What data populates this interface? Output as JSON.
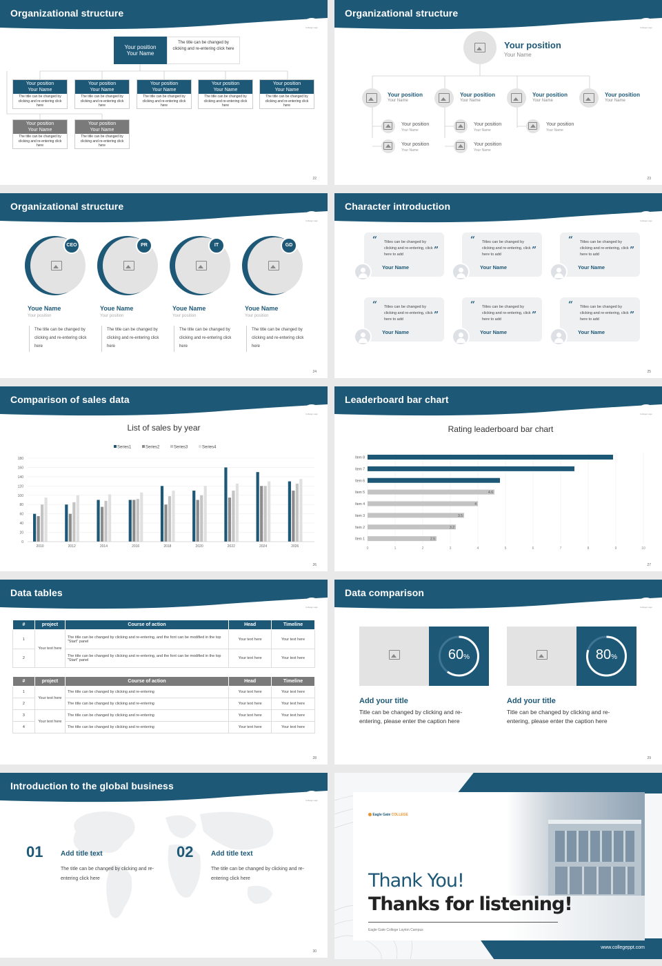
{
  "colors": {
    "navy": "#1d5877",
    "gray": "#7a7a7a",
    "light": "#e4e3e4"
  },
  "logo_text": "College Logo",
  "s22": {
    "title": "Organizational structure",
    "page": "22",
    "top": {
      "position": "Your position",
      "name": "Your Name",
      "desc": "The title can be changed by clicking and re-entering click here"
    },
    "boxes": [
      {
        "position": "Your position",
        "name": "Your Name",
        "text": "The title can be changed by clicking and re-entering click here"
      },
      {
        "position": "Your position",
        "name": "Your Name",
        "text": "The title can be changed by clicking and re-entering click here"
      },
      {
        "position": "Your position",
        "name": "Your Name",
        "text": "The title can be changed by clicking and re-entering click here"
      },
      {
        "position": "Your position",
        "name": "Your Name",
        "text": "The title can be changed by clicking and re-entering click here"
      },
      {
        "position": "Your position",
        "name": "Your Name",
        "text": "The title can be changed by clicking and re-entering click here"
      },
      {
        "position": "Your position",
        "name": "Your Name",
        "text": "The title can be changed by clicking and re-entering click here"
      },
      {
        "position": "Your position",
        "name": "Your Name",
        "text": "The title can be changed by clicking and re-entering click here"
      }
    ]
  },
  "s23": {
    "title": "Organizational structure",
    "page": "23",
    "top": {
      "position": "Your position",
      "name": "Your Name"
    },
    "level1": [
      {
        "position": "Your position",
        "name": "Your Name"
      },
      {
        "position": "Your position",
        "name": "Your Name"
      },
      {
        "position": "Your position",
        "name": "Your Name"
      },
      {
        "position": "Your position",
        "name": "Your Name"
      }
    ],
    "level2": [
      {
        "position": "Your position",
        "name": "Your Name"
      },
      {
        "position": "Your position",
        "name": "Your Name"
      },
      {
        "position": "Your position",
        "name": "Your Name"
      },
      {
        "position": "Your position",
        "name": "Your Name"
      },
      {
        "position": "Your position",
        "name": "Your Name"
      }
    ]
  },
  "s24": {
    "title": "Organizational structure",
    "page": "24",
    "people": [
      {
        "badge": "CEO",
        "name": "Youe Name",
        "position": "Your position",
        "text": "The title can be changed by clicking and re-entering click here"
      },
      {
        "badge": "PR",
        "name": "Youe Name",
        "position": "Your position",
        "text": "The title can be changed by clicking and re-entering click here"
      },
      {
        "badge": "IT",
        "name": "Youe Name",
        "position": "Your position",
        "text": "The title can be changed by clicking and re-entering click here"
      },
      {
        "badge": "GD",
        "name": "Youe Name",
        "position": "Your position",
        "text": "The title can be changed by clicking and re-entering click here"
      }
    ]
  },
  "s25": {
    "title": "Character introduction",
    "page": "25",
    "quote_open": "“",
    "quote_close": "”",
    "cards": [
      {
        "text": "Titles can be changed by clicking and re-entering, click here to add",
        "name": "Your Name"
      },
      {
        "text": "Titles can be changed by clicking and re-entering, click here to add",
        "name": "Your Name"
      },
      {
        "text": "Titles can be changed by clicking and re-entering, click here to add",
        "name": "Your Name"
      },
      {
        "text": "Titles can be changed by clicking and re-entering, click here to add",
        "name": "Your Name"
      },
      {
        "text": "Titles can be changed by clicking and re-entering, click here to add",
        "name": "Your Name"
      },
      {
        "text": "Titles can be changed by clicking and re-entering, click here to add",
        "name": "Your Name"
      }
    ]
  },
  "s26": {
    "title": "Comparison of sales data",
    "page": "26"
  },
  "s27": {
    "title": "Leaderboard bar chart",
    "page": "27"
  },
  "chart_data": [
    {
      "type": "bar",
      "title": "List of sales by year",
      "categories": [
        "2010",
        "2012",
        "2014",
        "2016",
        "2018",
        "2020",
        "2022",
        "2024",
        "2026"
      ],
      "series": [
        {
          "name": "Series1",
          "color": "#1d5877",
          "values": [
            60,
            80,
            90,
            90,
            120,
            110,
            160,
            150,
            130
          ]
        },
        {
          "name": "Series2",
          "color": "#8c8c8c",
          "values": [
            55,
            60,
            75,
            90,
            80,
            90,
            95,
            120,
            110
          ]
        },
        {
          "name": "Series3",
          "color": "#c4c4c4",
          "values": [
            80,
            85,
            88,
            92,
            98,
            100,
            110,
            120,
            125
          ]
        },
        {
          "name": "Series4",
          "color": "#e0e0e0",
          "values": [
            95,
            100,
            102,
            106,
            110,
            120,
            125,
            130,
            135
          ]
        }
      ],
      "ylim": [
        0,
        180
      ],
      "yticks": [
        0,
        20,
        40,
        60,
        80,
        100,
        120,
        140,
        160,
        180
      ],
      "legend": "top",
      "grid": true
    },
    {
      "type": "bar",
      "orientation": "horizontal",
      "title": "Rating leaderboard bar chart",
      "categories": [
        "Item 8",
        "Item 7",
        "Item 6",
        "Item 5",
        "Item 4",
        "Item 3",
        "Item 2",
        "Item 1"
      ],
      "values": [
        8.9,
        7.5,
        4.8,
        4.6,
        4,
        3.5,
        3.2,
        2.5
      ],
      "labels": [
        "",
        "",
        "",
        "4.6",
        "4",
        "3.5",
        "3.2",
        "2.5"
      ],
      "highlight_count": 3,
      "xlim": [
        0,
        10
      ],
      "xticks": [
        0,
        1,
        2,
        3,
        4,
        5,
        6,
        7,
        8,
        9,
        10
      ],
      "grid": true
    }
  ],
  "s28": {
    "title": "Data tables",
    "page": "28",
    "t1": {
      "headers": [
        "#",
        "project",
        "Course of action",
        "Head",
        "Timeline"
      ],
      "group": "Your text here",
      "rows": [
        {
          "n": "1",
          "c": "The title can be changed by clicking and re-entering, and the font can be modified in the top \"Start\" panel",
          "h": "Your text here",
          "t": "Your text here"
        },
        {
          "n": "2",
          "c": "The title can be changed by clicking and re-entering, and the font can be modified in the top \"Start\" panel",
          "h": "Your text here",
          "t": "Your text here"
        }
      ]
    },
    "t2": {
      "headers": [
        "#",
        "project",
        "Course of action",
        "Head",
        "Timeline"
      ],
      "groups": [
        "Your text here",
        "Your text here"
      ],
      "rows": [
        {
          "n": "1",
          "c": "The title can be changed by clicking and re-entering",
          "h": "Your text here",
          "t": "Your text here"
        },
        {
          "n": "2",
          "c": "The title can be changed by clicking and re-entering",
          "h": "Your text here",
          "t": "Your text here"
        },
        {
          "n": "3",
          "c": "The title can be changed by clicking and re-entering",
          "h": "Your text here",
          "t": "Your text here"
        },
        {
          "n": "4",
          "c": "The title can be changed by clicking and re-entering",
          "h": "Your text here",
          "t": "Your text here"
        }
      ]
    }
  },
  "s29": {
    "title": "Data comparison",
    "page": "29",
    "items": [
      {
        "value": 60,
        "num": "60",
        "unit": "%",
        "title": "Add your title",
        "text": "Title can be changed by clicking and re-entering, please enter the caption here"
      },
      {
        "value": 80,
        "num": "80",
        "unit": "%",
        "title": "Add your title",
        "text": "Title can be changed by clicking and re-entering, please enter the caption here"
      }
    ]
  },
  "s30": {
    "title": "Introduction to the global business",
    "page": "30",
    "items": [
      {
        "num": "01",
        "title": "Add title text",
        "text": "The title can be changed by clicking and re-entering click here"
      },
      {
        "num": "02",
        "title": "Add title text",
        "text": "The title can be changed by clicking and re-entering click here"
      }
    ]
  },
  "s31": {
    "brand": "Eagle Gate",
    "brand_sub": "COLLEGE",
    "thank": "Thank You!",
    "listen": "Thanks for listening!",
    "campus": "Eagle Gate College Layton Campus",
    "url": "www.collegeppt.com"
  }
}
